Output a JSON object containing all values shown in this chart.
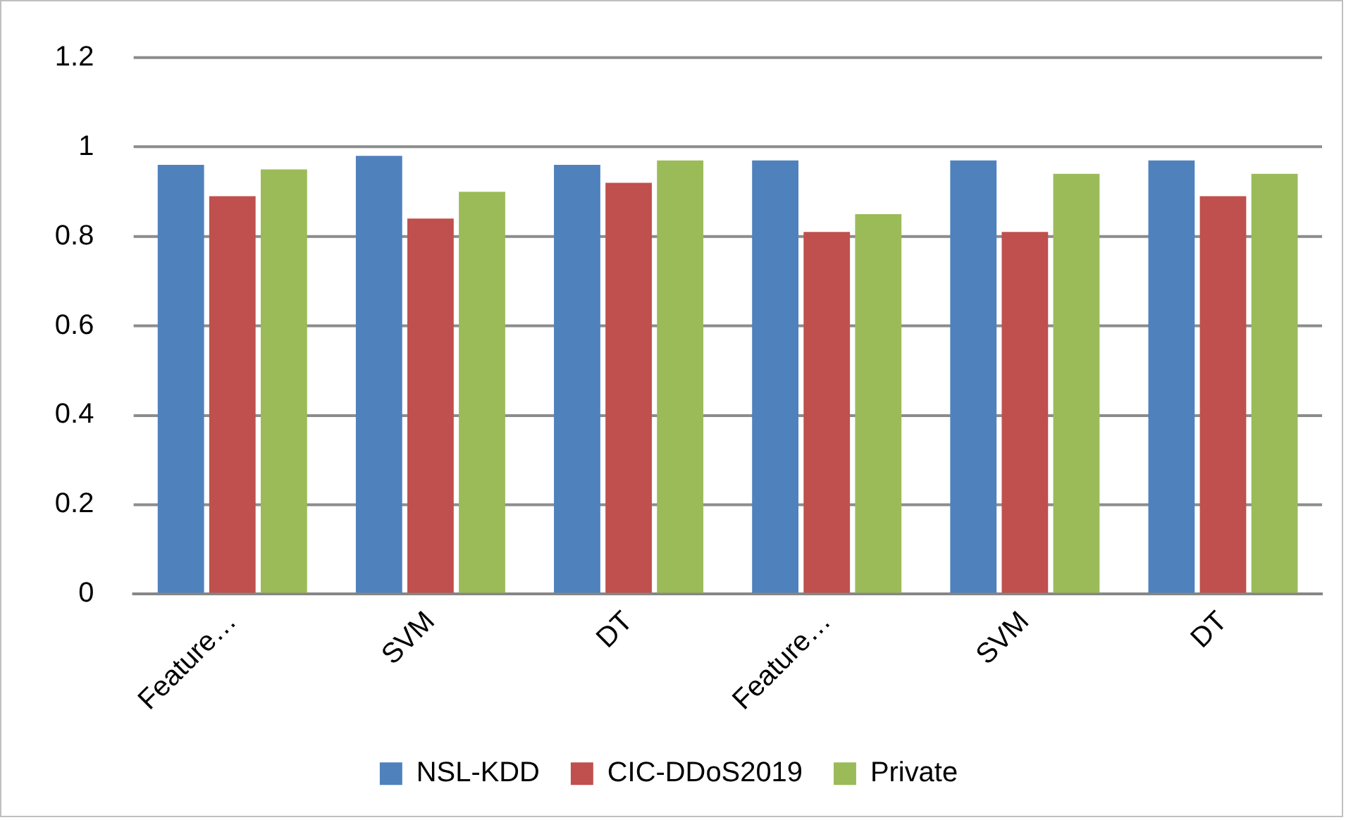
{
  "chart_data": {
    "type": "bar",
    "categories": [
      "Feature…",
      "SVM",
      "DT",
      "Feature…",
      "SVM",
      "DT"
    ],
    "series": [
      {
        "name": "NSL-KDD",
        "color": "#4f81bd",
        "values": [
          0.96,
          0.98,
          0.96,
          0.97,
          0.97,
          0.97
        ]
      },
      {
        "name": "CIC-DDoS2019",
        "color": "#c0504d",
        "values": [
          0.89,
          0.84,
          0.92,
          0.81,
          0.81,
          0.89
        ]
      },
      {
        "name": "Private",
        "color": "#9bbb59",
        "values": [
          0.95,
          0.9,
          0.97,
          0.85,
          0.94,
          0.94
        ]
      }
    ],
    "ylim": [
      0,
      1.2
    ],
    "yticks": [
      0,
      0.2,
      0.4,
      0.6,
      0.8,
      1,
      1.2
    ],
    "grid": "y",
    "legend": "bottom"
  }
}
